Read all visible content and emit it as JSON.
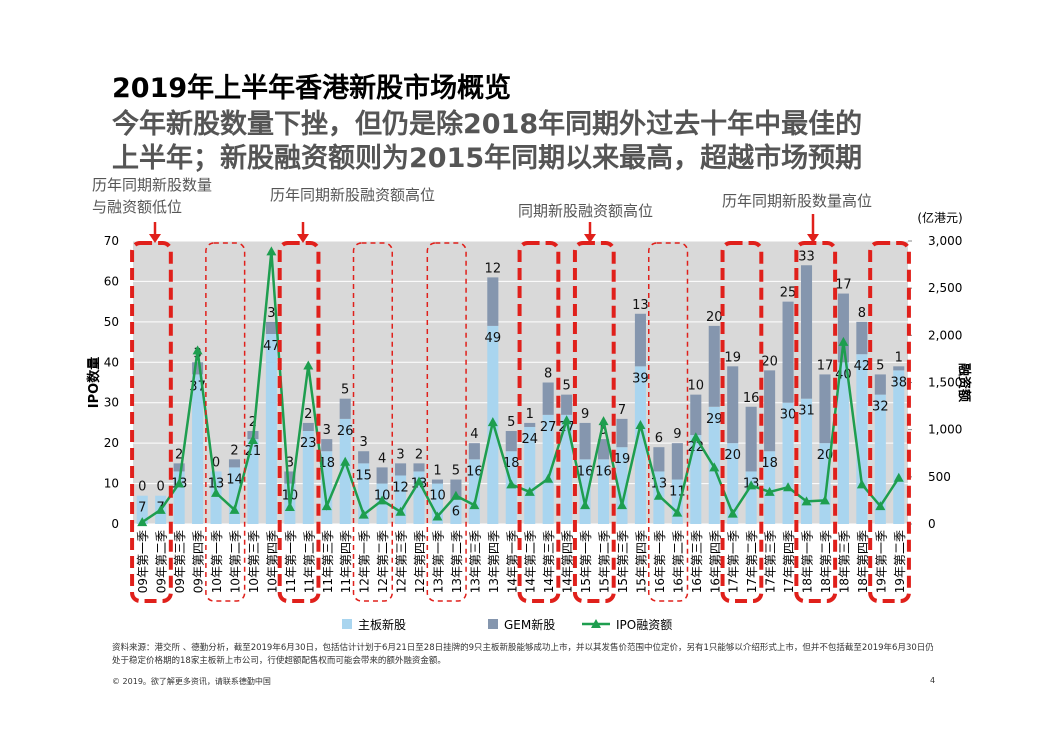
{
  "header": {
    "title": "2019年上半年香港新股市场概览",
    "subtitle": [
      "今年新股数量下挫，但仍是除2018年同期外过去十年中最佳的",
      "上半年；新股融资额则为2015年同期以来最高，超越市场预期"
    ]
  },
  "annotations": [
    "历年同期新股数量",
    "与融资额低位",
    "历年同期新股融资额高位",
    "同期新股融资额高位",
    "历年同期新股数量高位"
  ],
  "chart_data": {
    "type": "bar",
    "categories": [
      "09年第一季",
      "09年第二季",
      "09年第三季",
      "09年第四季",
      "10年第一季",
      "10年第二季",
      "10年第三季",
      "10年第四季",
      "11年第一季",
      "11年第二季",
      "11年第三季",
      "11年第四季",
      "12年第一季",
      "12年第二季",
      "12年第三季",
      "12年第四季",
      "13年第一季",
      "13年第二季",
      "13年第三季",
      "13年第四季",
      "14年第一季",
      "14年第二季",
      "14年第三季",
      "14年第四季",
      "15年第一季",
      "15年第二季",
      "15年第三季",
      "15年第四季",
      "16年第一季",
      "16年第二季",
      "16年第三季",
      "16年第四季",
      "17年第一季",
      "17年第二季",
      "17年第三季",
      "17年第四季",
      "18年第一季",
      "18年第二季",
      "18年第三季",
      "18年第四季",
      "19年第一季",
      "19年第二季"
    ],
    "series": [
      {
        "name": "主板新股",
        "color": "#a9d5ef",
        "values": [
          7,
          7,
          13,
          37,
          13,
          14,
          21,
          47,
          10,
          23,
          18,
          26,
          15,
          10,
          12,
          13,
          10,
          6,
          16,
          49,
          18,
          24,
          27,
          27,
          16,
          16,
          19,
          39,
          13,
          11,
          22,
          29,
          20,
          13,
          18,
          30,
          31,
          20,
          40,
          42,
          32,
          38
        ]
      },
      {
        "name": "GEM新股",
        "color": "#8596ae",
        "values": [
          0,
          0,
          2,
          3,
          0,
          2,
          2,
          3,
          3,
          2,
          3,
          5,
          3,
          4,
          3,
          2,
          1,
          5,
          4,
          12,
          5,
          1,
          8,
          5,
          9,
          5,
          7,
          13,
          6,
          9,
          10,
          20,
          19,
          16,
          20,
          25,
          33,
          17,
          17,
          8,
          5,
          1
        ]
      },
      {
        "name": "IPO融资额",
        "color": "#1e9e4f",
        "axis": "y2",
        "values": [
          20,
          150,
          430,
          1840,
          330,
          150,
          890,
          2890,
          180,
          1680,
          190,
          660,
          100,
          250,
          130,
          450,
          80,
          300,
          200,
          1080,
          420,
          340,
          480,
          1100,
          200,
          1090,
          200,
          1050,
          300,
          120,
          920,
          600,
          110,
          410,
          340,
          390,
          240,
          250,
          1930,
          420,
          190,
          490
        ]
      }
    ],
    "ylabel": "IPO数量",
    "y2label": "融资额",
    "y2unit": "(亿港元)",
    "ylim": [
      0,
      70
    ],
    "yticks": [
      0,
      10,
      20,
      30,
      40,
      50,
      60,
      70
    ],
    "y2lim": [
      0,
      3000
    ],
    "y2ticks": [
      0,
      500,
      {
        "value": 1000,
        "label": "1,000"
      },
      {
        "value": 1500,
        "label": "1,500"
      },
      {
        "value": 2000,
        "label": "2,000"
      },
      {
        "value": 2500,
        "label": "2,500"
      },
      {
        "value": 3000,
        "label": "3,000"
      }
    ]
  },
  "footer": {
    "source": "资料来源：港交所 、德勤分析，截至2019年6月30日，包括估计计划于6月21日至28日挂牌的9只主板新股能够成功上市，并以其发售价范围中位定价，另有1只能够以介绍形式上市，但并不包括截至2019年6月30日仍处于稳定价格期的18家主板新上市公司，行使超额配售权而可能会带来的额外融资金额。",
    "copyright": "© 2019。欲了解更多资讯，请联系德勤中国",
    "page": "4"
  }
}
